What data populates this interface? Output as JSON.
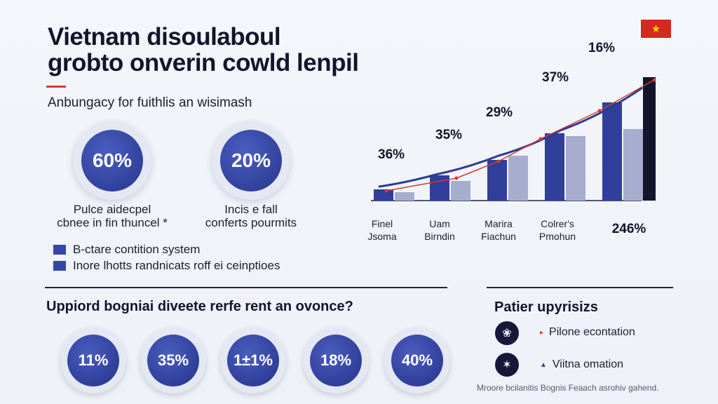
{
  "title_line1": "Vietnam disoulaboul",
  "title_line2": "grobto onverin cowld lenpil",
  "subtitle": "Anbungacy for fuithlis an wisimash",
  "big_stats": [
    {
      "value": "60%",
      "caption1": "Pulce aidecpel",
      "caption2": "cbnee in fin thuncel *"
    },
    {
      "value": "20%",
      "caption1": "Incis e fall",
      "caption2": "conferts pourmits"
    }
  ],
  "legend": [
    {
      "label": "B-ctare contition system",
      "color": "#3646a8"
    },
    {
      "label": "Inore lhotts randnicats roff ei ceinptioes",
      "color": "#3646a8"
    }
  ],
  "question_title": "Uppiord bogniai diveete rerfe rent an ovonce?",
  "small_stats": [
    "11%",
    "35%",
    "1±1%",
    "18%",
    "40%"
  ],
  "priorities": {
    "title": "Patier upyrisizs",
    "items": [
      {
        "label": "Pilone econtation",
        "bullet": "▸",
        "icon": "❀"
      },
      {
        "label": "Viitna omation",
        "bullet": "▲",
        "icon": "✶"
      }
    ]
  },
  "footnote": "Mroore bcilanitis Bognis Feaach asrohiv gahend.",
  "flag_star": "★",
  "colors": {
    "bar_dark": "#2f3f9a",
    "bar_light": "#a6adcf",
    "trend_curve": "#2d3a93",
    "trend_red": "#d63a2f",
    "last_bar": "#12152b",
    "flag": "#d7281f"
  },
  "chart_data": {
    "type": "bar",
    "title": "",
    "categories": [
      {
        "line1": "Finel",
        "line2": "Jsoma"
      },
      {
        "line1": "Uam",
        "line2": "Birndin"
      },
      {
        "line1": "Marira",
        "line2": "Fiachun"
      },
      {
        "line1": "Colrer's",
        "line2": "Pmohun"
      },
      {
        "line1": "",
        "line2": ""
      }
    ],
    "series": [
      {
        "name": "dark",
        "values": [
          8,
          18,
          29,
          48,
          70
        ]
      },
      {
        "name": "light",
        "values": [
          6,
          14,
          32,
          46,
          51
        ]
      }
    ],
    "last_bar_value": 88,
    "trend_curve": [
      10,
      19,
      32,
      50,
      80
    ],
    "trend_red": [
      7,
      16,
      28,
      44,
      64,
      86
    ],
    "value_labels": [
      "36%",
      "35%",
      "29%",
      "37%",
      "16%"
    ],
    "last_label": "246%",
    "ylim": [
      0,
      100
    ]
  }
}
